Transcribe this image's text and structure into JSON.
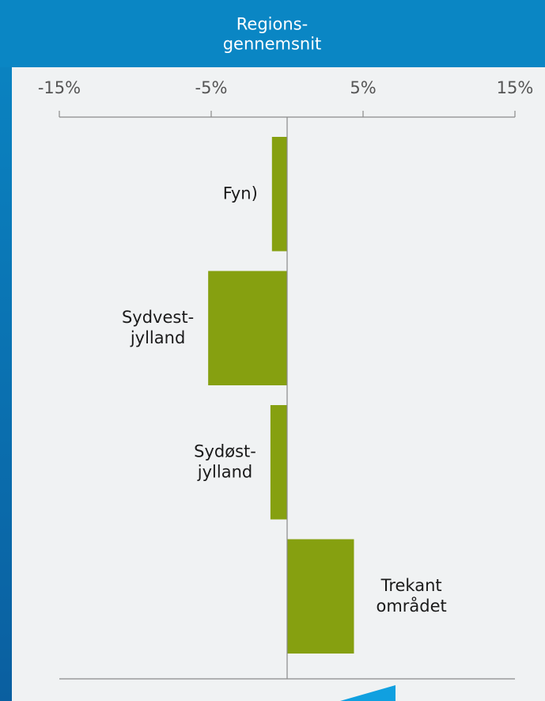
{
  "chart_data": {
    "type": "hbar",
    "title": "Regions-\ngennemsnit",
    "categories": [
      "Fyn)",
      "Sydvest-\njylland",
      "Sydøst-\njylland",
      "Trekant\nområdet"
    ],
    "values": [
      -1.0,
      -5.2,
      -1.1,
      4.4
    ],
    "color": "#86a010",
    "xlim": [
      -15,
      15
    ],
    "xticks": [
      {
        "value": -15,
        "label": "-15%"
      },
      {
        "value": -5,
        "label": "-5%"
      },
      {
        "value": 5,
        "label": "5%"
      },
      {
        "value": 15,
        "label": "15%"
      }
    ]
  }
}
